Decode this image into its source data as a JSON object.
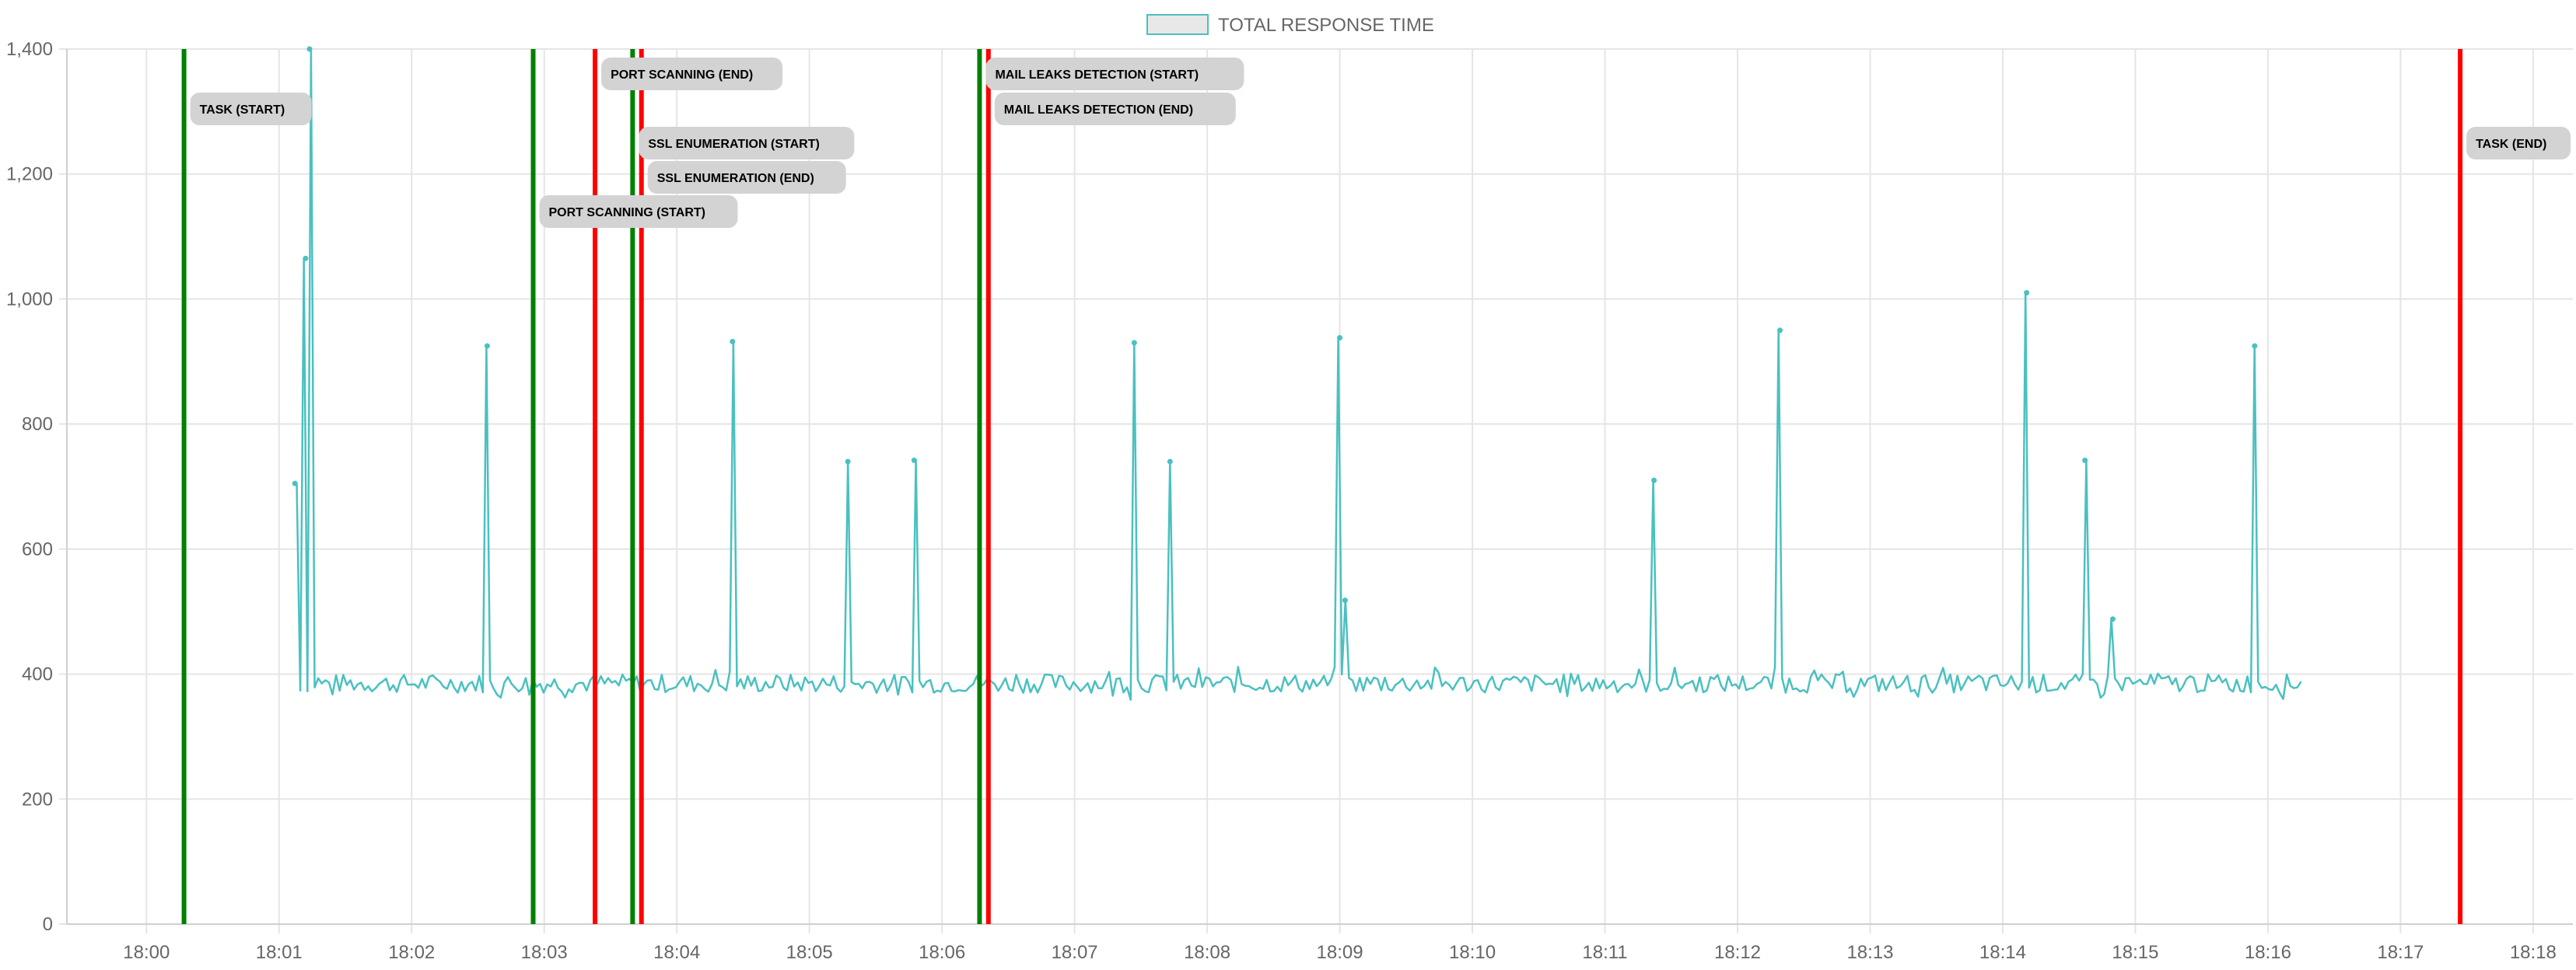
{
  "legend": {
    "label": "TOTAL RESPONSE TIME"
  },
  "chart_data": {
    "type": "line",
    "xlabel": "",
    "ylabel": "",
    "x_ticks": [
      "18:00",
      "18:01",
      "18:02",
      "18:03",
      "18:04",
      "18:05",
      "18:06",
      "18:07",
      "18:08",
      "18:09",
      "18:10",
      "18:11",
      "18:12",
      "18:13",
      "18:14",
      "18:15",
      "18:16",
      "18:17",
      "18:18"
    ],
    "x_range_minutes": [
      -0.6,
      18.3
    ],
    "ylim": [
      0,
      1400
    ],
    "y_ticks": [
      0,
      200,
      400,
      600,
      800,
      1000,
      1200,
      1400
    ],
    "y_tick_labels": [
      "0",
      "200",
      "400",
      "600",
      "800",
      "1,000",
      "1,200",
      "1,400"
    ],
    "grid": true,
    "legend_position": "top-center",
    "series_color": "#4bc0c0",
    "series": [
      {
        "name": "TOTAL RESPONSE TIME",
        "data_start": "18:01:08",
        "data_end": "18:16:15",
        "baseline_value": 385,
        "baseline_noise": 15,
        "spikes": [
          {
            "t": 1.12,
            "v": 705
          },
          {
            "t": 1.2,
            "v": 1065
          },
          {
            "t": 1.23,
            "v": 1400
          },
          {
            "t": 2.57,
            "v": 925
          },
          {
            "t": 4.42,
            "v": 932
          },
          {
            "t": 5.29,
            "v": 740
          },
          {
            "t": 5.79,
            "v": 742
          },
          {
            "t": 7.45,
            "v": 930
          },
          {
            "t": 7.72,
            "v": 740
          },
          {
            "t": 9.0,
            "v": 938
          },
          {
            "t": 9.04,
            "v": 518
          },
          {
            "t": 11.37,
            "v": 710
          },
          {
            "t": 12.32,
            "v": 950
          },
          {
            "t": 14.18,
            "v": 1010
          },
          {
            "t": 14.62,
            "v": 742
          },
          {
            "t": 14.83,
            "v": 488
          },
          {
            "t": 15.9,
            "v": 925
          }
        ]
      }
    ],
    "events": [
      {
        "label": "TASK (START)",
        "time": "18:00:17",
        "color": "#008000"
      },
      {
        "label": "PORT SCANNING (START)",
        "time": "18:02:55",
        "color": "#008000"
      },
      {
        "label": "PORT SCANNING (END)",
        "time": "18:03:23",
        "color": "#ff0000"
      },
      {
        "label": "SSL ENUMERATION (START)",
        "time": "18:03:40",
        "color": "#008000"
      },
      {
        "label": "SSL ENUMERATION (END)",
        "time": "18:03:44",
        "color": "#ff0000"
      },
      {
        "label": "MAIL LEAKS DETECTION (START)",
        "time": "18:06:17",
        "color": "#008000"
      },
      {
        "label": "MAIL LEAKS DETECTION (END)",
        "time": "18:06:21",
        "color": "#ff0000"
      },
      {
        "label": "TASK (END)",
        "time": "18:17:27",
        "color": "#ff0000"
      }
    ]
  }
}
